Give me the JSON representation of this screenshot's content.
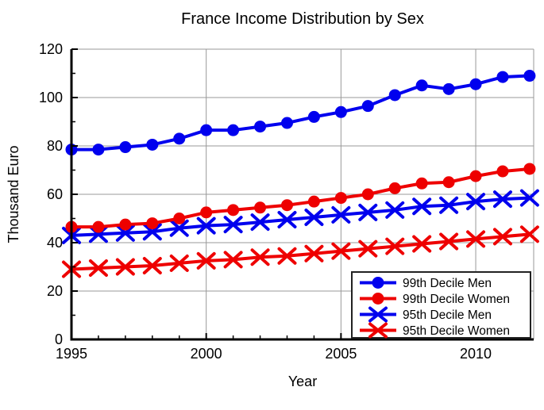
{
  "chart_data": {
    "type": "line",
    "title": "France Income Distribution by Sex",
    "xlabel": "Year",
    "ylabel": "Thousand Euro",
    "xlim": [
      1995,
      2012.15
    ],
    "ylim": [
      0,
      120
    ],
    "x_major_ticks": [
      1995,
      2000,
      2005,
      2010
    ],
    "x_minor_tick_step": 1,
    "y_major_ticks": [
      0,
      20,
      40,
      60,
      80,
      100,
      120
    ],
    "y_minor_tick_step": 10,
    "x_gridlines": [
      2000,
      2005,
      2010
    ],
    "y_gridlines": [
      20,
      40,
      60,
      80,
      100,
      120
    ],
    "grid": true,
    "legend_position": "lower right",
    "x": [
      1995,
      1996,
      1997,
      1998,
      1999,
      2000,
      2001,
      2002,
      2003,
      2004,
      2005,
      2006,
      2007,
      2008,
      2009,
      2010,
      2011,
      2012
    ],
    "series": [
      {
        "name": "99th Decile Men",
        "color": "#0000EE",
        "marker": "circle",
        "values": [
          78.5,
          78.5,
          79.5,
          80.5,
          83,
          86.5,
          86.5,
          88,
          89.5,
          92,
          94,
          96.5,
          101,
          105,
          103.5,
          105.5,
          108.5,
          109
        ]
      },
      {
        "name": "99th Decile Women",
        "color": "#EE0000",
        "marker": "circle",
        "values": [
          46.5,
          46.5,
          47.5,
          48,
          50,
          52.5,
          53.5,
          54.5,
          55.5,
          57,
          58.5,
          60,
          62.5,
          64.5,
          65,
          67.5,
          69.5,
          70.5
        ]
      },
      {
        "name": "95th Decile Men",
        "color": "#0000EE",
        "marker": "x",
        "values": [
          43,
          43.5,
          44,
          44.5,
          46,
          47,
          47.5,
          48.5,
          49.5,
          50.5,
          51.5,
          52.5,
          53.5,
          55,
          55.5,
          57,
          58,
          58.5
        ]
      },
      {
        "name": "95th Decile Women",
        "color": "#EE0000",
        "marker": "x",
        "values": [
          29,
          29.5,
          30,
          30.5,
          31.5,
          32.5,
          33,
          34,
          34.5,
          35.5,
          36.5,
          37.5,
          38.5,
          39.5,
          40.5,
          41.5,
          42.5,
          43.5
        ]
      }
    ],
    "colors": {
      "axis": "#000000",
      "grid": "#999999",
      "background": "#ffffff",
      "legend_border": "#222222"
    }
  }
}
